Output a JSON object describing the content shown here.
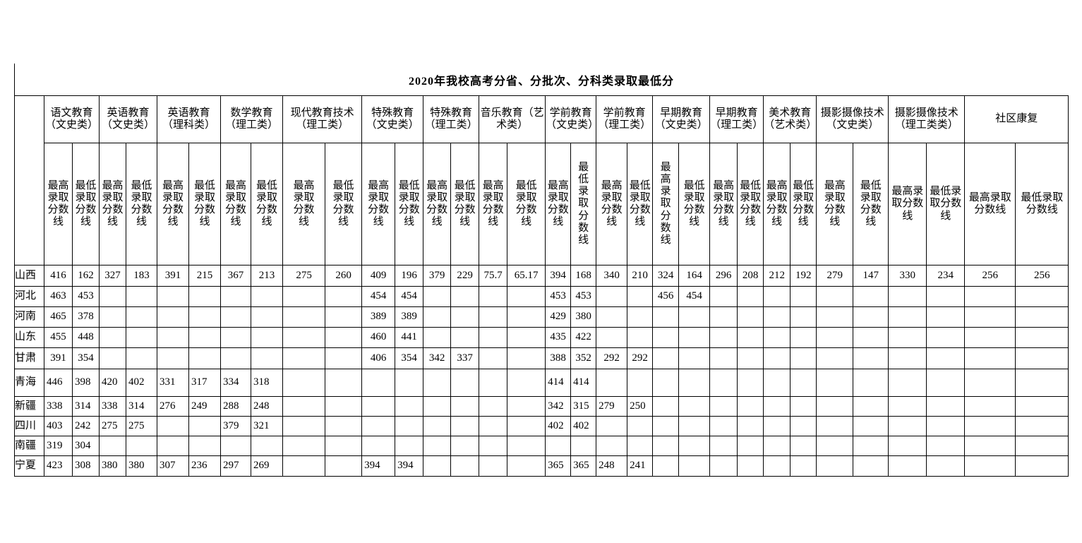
{
  "title": "2020年我校高考分省、分批次、分科类录取最低分",
  "table": {
    "corner_label": "",
    "categories": [
      {
        "label": "语文教育（文史类）",
        "subs": [
          {
            "label": "最高录取分数线",
            "wrap": 2
          },
          {
            "label": "最低录取分数线",
            "wrap": 2
          }
        ]
      },
      {
        "label": "英语教育（文史类）",
        "subs": [
          {
            "label": "最高录取分数线",
            "wrap": 2
          },
          {
            "label": "最低录取分数线",
            "wrap": 2
          }
        ]
      },
      {
        "label": "英语教育（理科类）",
        "subs": [
          {
            "label": "最高录取分数线",
            "wrap": 2
          },
          {
            "label": "最低录取分数线",
            "wrap": 2
          }
        ]
      },
      {
        "label": "数学教育（理工类）",
        "subs": [
          {
            "label": "最高录取分数线",
            "wrap": 2
          },
          {
            "label": "最低录取分数线",
            "wrap": 2
          }
        ]
      },
      {
        "label": "现代教育技术（理工类）",
        "subs": [
          {
            "label": "最高录取分数线",
            "wrap": 2
          },
          {
            "label": "最低录取分数线",
            "wrap": 2
          }
        ]
      },
      {
        "label": "特殊教育（文史类）",
        "subs": [
          {
            "label": "最高录取分数线",
            "wrap": 2
          },
          {
            "label": "最低录取分数线",
            "wrap": 2
          }
        ]
      },
      {
        "label": "特殊教育（理工类）",
        "subs": [
          {
            "label": "最高录取分数线",
            "wrap": 2
          },
          {
            "label": "最低录取分数线",
            "wrap": 2
          }
        ]
      },
      {
        "label": "音乐教育（艺术类）",
        "subs": [
          {
            "label": "最高录取分数线",
            "wrap": 2
          },
          {
            "label": "最低录取分数线",
            "wrap": 2
          }
        ]
      },
      {
        "label": "学前教育（文史类）",
        "subs": [
          {
            "label": "最高录取分数线",
            "wrap": 2
          },
          {
            "label": "最低录取分数线",
            "wrap": 1
          }
        ]
      },
      {
        "label": "学前教育（理工类）",
        "subs": [
          {
            "label": "最高录取分数线",
            "wrap": 2
          },
          {
            "label": "最低录取分数线",
            "wrap": 2
          }
        ]
      },
      {
        "label": "早期教育（文史类）",
        "subs": [
          {
            "label": "最高录取分数线",
            "wrap": 1
          },
          {
            "label": "最低录取分数线",
            "wrap": 2
          }
        ]
      },
      {
        "label": "早期教育（理工类）",
        "subs": [
          {
            "label": "最高录取分数线",
            "wrap": 2
          },
          {
            "label": "最低录取分数线",
            "wrap": 2
          }
        ]
      },
      {
        "label": "美术教育（艺术类）",
        "subs": [
          {
            "label": "最高录取分数线",
            "wrap": 2
          },
          {
            "label": "最低录取分数线",
            "wrap": 2
          }
        ]
      },
      {
        "label": "摄影摄像技术（文史类）",
        "subs": [
          {
            "label": "最高录取分数线",
            "wrap": 2
          },
          {
            "label": "最低录取分数线",
            "wrap": 2
          }
        ]
      },
      {
        "label": "摄影摄像技术（理工类类）",
        "subs": [
          {
            "label": "最高录取分数线",
            "wrap": 3
          },
          {
            "label": "最低录取分数线",
            "wrap": 3
          }
        ]
      },
      {
        "label": "社区康复",
        "subs": [
          {
            "label": "最高录取分数线",
            "wrap": 4
          },
          {
            "label": "最低录取分数线",
            "wrap": 4
          }
        ]
      }
    ],
    "rows": [
      {
        "province": "山西",
        "align": "center",
        "values": [
          "416",
          "162",
          "327",
          "183",
          "391",
          "215",
          "367",
          "213",
          "275",
          "260",
          "409",
          "196",
          "379",
          "229",
          "75.7",
          "65.17",
          "394",
          "168",
          "340",
          "210",
          "324",
          "164",
          "296",
          "208",
          "212",
          "192",
          "279",
          "147",
          "330",
          "234",
          "256",
          "256"
        ]
      },
      {
        "province": "河北",
        "align": "center",
        "values": [
          "463",
          "453",
          "",
          "",
          "",
          "",
          "",
          "",
          "",
          "",
          "454",
          "454",
          "",
          "",
          "",
          "",
          "453",
          "453",
          "",
          "",
          "456",
          "454",
          "",
          "",
          "",
          "",
          "",
          "",
          "",
          "",
          "",
          ""
        ]
      },
      {
        "province": "河南",
        "align": "center",
        "values": [
          "465",
          "378",
          "",
          "",
          "",
          "",
          "",
          "",
          "",
          "",
          "389",
          "389",
          "",
          "",
          "",
          "",
          "429",
          "380",
          "",
          "",
          "",
          "",
          "",
          "",
          "",
          "",
          "",
          "",
          "",
          "",
          "",
          ""
        ]
      },
      {
        "province": "山东",
        "align": "center",
        "values": [
          "455",
          "448",
          "",
          "",
          "",
          "",
          "",
          "",
          "",
          "",
          "460",
          "441",
          "",
          "",
          "",
          "",
          "435",
          "422",
          "",
          "",
          "",
          "",
          "",
          "",
          "",
          "",
          "",
          "",
          "",
          "",
          "",
          ""
        ]
      },
      {
        "province": "甘肃",
        "align": "center",
        "values": [
          "391",
          "354",
          "",
          "",
          "",
          "",
          "",
          "",
          "",
          "",
          "406",
          "354",
          "342",
          "337",
          "",
          "",
          "388",
          "352",
          "292",
          "292",
          "",
          "",
          "",
          "",
          "",
          "",
          "",
          "",
          "",
          "",
          "",
          ""
        ]
      },
      {
        "province": "青海",
        "align": "left",
        "values": [
          "446",
          "398",
          "420",
          "402",
          "331",
          "317",
          "334",
          "318",
          "",
          "",
          "",
          "",
          "",
          "",
          "",
          "",
          "414",
          "414",
          "",
          "",
          "",
          "",
          "",
          "",
          "",
          "",
          "",
          "",
          "",
          "",
          "",
          ""
        ]
      },
      {
        "province": "新疆",
        "align": "left",
        "values": [
          "338",
          "314",
          "338",
          "314",
          "276",
          "249",
          "288",
          "248",
          "",
          "",
          "",
          "",
          "",
          "",
          "",
          "",
          "342",
          "315",
          "279",
          "250",
          "",
          "",
          "",
          "",
          "",
          "",
          "",
          "",
          "",
          "",
          "",
          ""
        ]
      },
      {
        "province": "四川",
        "align": "left",
        "values": [
          "403",
          "242",
          "275",
          "275",
          "",
          "",
          "379",
          "321",
          "",
          "",
          "",
          "",
          "",
          "",
          "",
          "",
          "402",
          "402",
          "",
          "",
          "",
          "",
          "",
          "",
          "",
          "",
          "",
          "",
          "",
          "",
          "",
          ""
        ]
      },
      {
        "province": "南疆",
        "align": "left",
        "values": [
          "319",
          "304",
          "",
          "",
          "",
          "",
          "",
          "",
          "",
          "",
          "",
          "",
          "",
          "",
          "",
          "",
          "",
          "",
          "",
          "",
          "",
          "",
          "",
          "",
          "",
          "",
          "",
          "",
          "",
          "",
          "",
          ""
        ]
      },
      {
        "province": "宁夏",
        "align": "left",
        "values": [
          "423",
          "308",
          "380",
          "380",
          "307",
          "236",
          "297",
          "269",
          "",
          "",
          "394",
          "394",
          "",
          "",
          "",
          "",
          "365",
          "365",
          "248",
          "241",
          "",
          "",
          "",
          "",
          "",
          "",
          "",
          "",
          "",
          "",
          "",
          ""
        ]
      }
    ]
  }
}
